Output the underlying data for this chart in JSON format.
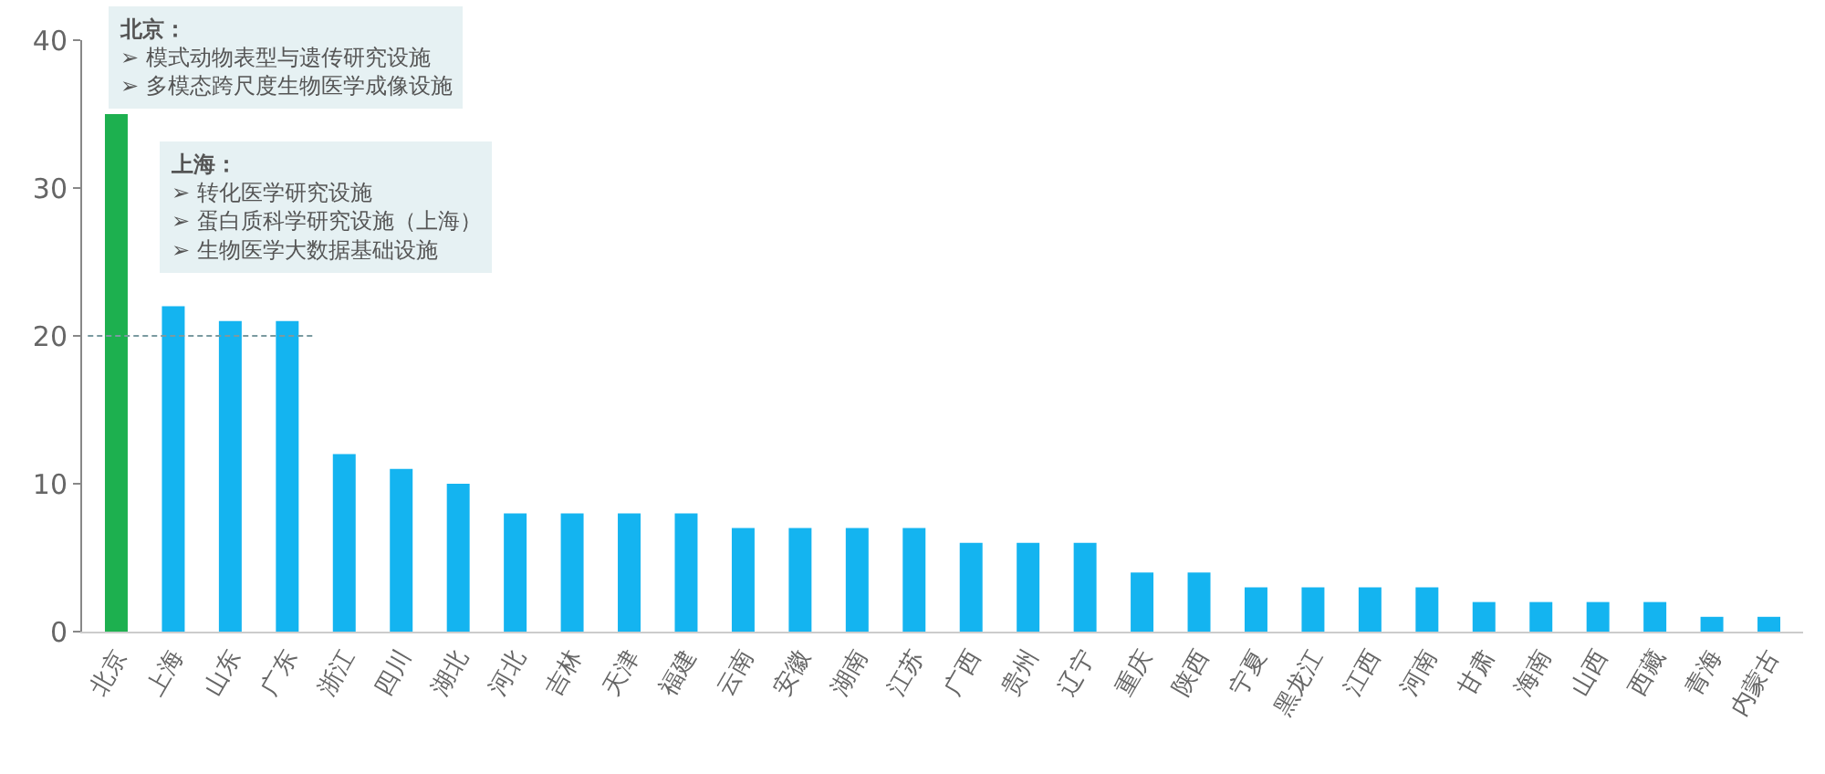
{
  "chart_data": {
    "type": "bar",
    "categories": [
      "北京",
      "上海",
      "山东",
      "广东",
      "浙江",
      "四川",
      "湖北",
      "河北",
      "吉林",
      "天津",
      "福建",
      "云南",
      "安徽",
      "湖南",
      "江苏",
      "广西",
      "贵州",
      "辽宁",
      "重庆",
      "陕西",
      "宁夏",
      "黑龙江",
      "江西",
      "河南",
      "甘肃",
      "海南",
      "山西",
      "西藏",
      "青海",
      "内蒙古"
    ],
    "values": [
      35,
      22,
      21,
      21,
      12,
      11,
      10,
      8,
      8,
      8,
      8,
      7,
      7,
      7,
      7,
      6,
      6,
      6,
      4,
      4,
      3,
      3,
      3,
      3,
      2,
      2,
      2,
      2,
      1,
      1
    ],
    "colors": [
      "#1db04f",
      "#14b4f0",
      "#14b4f0",
      "#14b4f0",
      "#14b4f0",
      "#14b4f0",
      "#14b4f0",
      "#14b4f0",
      "#14b4f0",
      "#14b4f0",
      "#14b4f0",
      "#14b4f0",
      "#14b4f0",
      "#14b4f0",
      "#14b4f0",
      "#14b4f0",
      "#14b4f0",
      "#14b4f0",
      "#14b4f0",
      "#14b4f0",
      "#14b4f0",
      "#14b4f0",
      "#14b4f0",
      "#14b4f0",
      "#14b4f0",
      "#14b4f0",
      "#14b4f0",
      "#14b4f0",
      "#14b4f0",
      "#14b4f0"
    ],
    "ylim": [
      0,
      40
    ],
    "yticks": [
      0,
      10,
      20,
      30,
      40
    ],
    "ref_lines": [
      {
        "axis": "y",
        "value": 20,
        "color": "#7a9aa0",
        "line_style": "dashed"
      }
    ],
    "annotations": [
      "北京：\n➢ 模式动物表型与遗传研究设施\n➢ 多模态跨尺度生物医学成像设施",
      "上海：\n➢ 转化医学研究设施\n➢ 蛋白质科学研究设施（上海）\n➢ 生物医学大数据基础设施"
    ]
  }
}
